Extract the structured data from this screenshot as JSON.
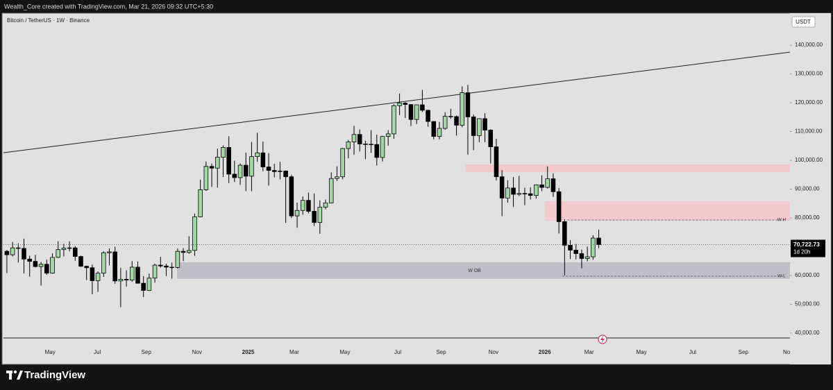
{
  "header": {
    "credit": "Wealth_Core created with TradingView.com, Mar 21, 2026 09:32 UTC+5:30"
  },
  "chart_data": {
    "type": "candlestick",
    "title": "Bitcoin / TetherUS · 1W · Binance",
    "currency": "USDT",
    "up_color": "#a5d6a7",
    "down_color": "#000000",
    "ohlc": [
      [
        68400,
        68900,
        60800,
        67200
      ],
      [
        67200,
        71700,
        66600,
        69600
      ],
      [
        69600,
        71200,
        64500,
        69400
      ],
      [
        69400,
        72800,
        60700,
        65700
      ],
      [
        65700,
        66900,
        59600,
        64900
      ],
      [
        64900,
        67200,
        62800,
        63100
      ],
      [
        63100,
        64700,
        56500,
        63900
      ],
      [
        63900,
        65500,
        60200,
        60800
      ],
      [
        60800,
        67700,
        60600,
        66300
      ],
      [
        66300,
        71900,
        66100,
        69000
      ],
      [
        69000,
        71000,
        66600,
        69500
      ],
      [
        69500,
        71900,
        68400,
        69600
      ],
      [
        69600,
        70200,
        65100,
        66600
      ],
      [
        66600,
        66900,
        63000,
        63200
      ],
      [
        63200,
        63400,
        58400,
        62700
      ],
      [
        62700,
        63800,
        53500,
        58200
      ],
      [
        58200,
        61400,
        54300,
        60800
      ],
      [
        60800,
        68400,
        59500,
        67900
      ],
      [
        67900,
        69400,
        63500,
        68200
      ],
      [
        68200,
        70000,
        57100,
        58100
      ],
      [
        58100,
        62700,
        49000,
        58700
      ],
      [
        58700,
        61800,
        56100,
        58400
      ],
      [
        58400,
        65000,
        57800,
        62900
      ],
      [
        62900,
        64900,
        57200,
        57300
      ],
      [
        57300,
        59800,
        52500,
        54800
      ],
      [
        54800,
        60700,
        54600,
        59100
      ],
      [
        59100,
        64100,
        57500,
        63600
      ],
      [
        63600,
        66500,
        62700,
        63300
      ],
      [
        63300,
        64100,
        59800,
        62900
      ],
      [
        62900,
        64500,
        58900,
        62800
      ],
      [
        62800,
        69400,
        62400,
        68400
      ],
      [
        68400,
        69500,
        65000,
        68000
      ],
      [
        68000,
        73600,
        67500,
        68700
      ],
      [
        68700,
        81500,
        66800,
        80400
      ],
      [
        80400,
        93300,
        80200,
        89800
      ],
      [
        89800,
        99600,
        89400,
        97900
      ],
      [
        97900,
        98900,
        90800,
        97300
      ],
      [
        97300,
        104100,
        90500,
        101100
      ],
      [
        101100,
        105200,
        94200,
        104500
      ],
      [
        104500,
        108400,
        92100,
        95200
      ],
      [
        95200,
        99900,
        92500,
        94000
      ],
      [
        94000,
        98900,
        91500,
        98300
      ],
      [
        98300,
        102700,
        89300,
        94500
      ],
      [
        94500,
        106400,
        89300,
        101300
      ],
      [
        101300,
        109600,
        99500,
        102600
      ],
      [
        102600,
        106500,
        96200,
        97700
      ],
      [
        97700,
        102500,
        91200,
        96500
      ],
      [
        96500,
        98800,
        94100,
        96100
      ],
      [
        96100,
        99500,
        93400,
        96300
      ],
      [
        96300,
        96500,
        78300,
        94300
      ],
      [
        94300,
        95000,
        80000,
        80700
      ],
      [
        80700,
        85300,
        76600,
        82600
      ],
      [
        82600,
        87500,
        81100,
        86100
      ],
      [
        86100,
        88800,
        81600,
        82300
      ],
      [
        82300,
        88500,
        77200,
        78400
      ],
      [
        78400,
        86100,
        74500,
        83700
      ],
      [
        83700,
        86400,
        83000,
        85200
      ],
      [
        85200,
        95800,
        85100,
        93700
      ],
      [
        93700,
        97900,
        92800,
        94300
      ],
      [
        94300,
        104300,
        93400,
        104100
      ],
      [
        104100,
        107100,
        100700,
        106400
      ],
      [
        106400,
        112000,
        102000,
        109000
      ],
      [
        109000,
        110700,
        103100,
        105700
      ],
      [
        105700,
        106800,
        100400,
        105600
      ],
      [
        105600,
        110500,
        102600,
        105500
      ],
      [
        105500,
        108900,
        98200,
        101000
      ],
      [
        101000,
        108500,
        99600,
        108300
      ],
      [
        108300,
        110500,
        105100,
        109200
      ],
      [
        109200,
        119500,
        107500,
        119000
      ],
      [
        119000,
        123200,
        115700,
        119900
      ],
      [
        119900,
        120200,
        114700,
        119400
      ],
      [
        119400,
        119500,
        111900,
        114200
      ],
      [
        114200,
        119400,
        112600,
        119300
      ],
      [
        119300,
        124500,
        116800,
        117400
      ],
      [
        117400,
        117600,
        111700,
        113500
      ],
      [
        113500,
        113600,
        107300,
        108300
      ],
      [
        108300,
        113400,
        107300,
        111100
      ],
      [
        111100,
        116700,
        110600,
        115300
      ],
      [
        115300,
        117900,
        114400,
        115200
      ],
      [
        115200,
        115600,
        108600,
        112200
      ],
      [
        112200,
        125700,
        111500,
        123500
      ],
      [
        123500,
        126200,
        102000,
        115100
      ],
      [
        115100,
        115900,
        103500,
        108600
      ],
      [
        108600,
        114600,
        106300,
        114500
      ],
      [
        114500,
        116400,
        106300,
        110500
      ],
      [
        110500,
        110800,
        98900,
        104700
      ],
      [
        104700,
        107500,
        93000,
        94300
      ],
      [
        94300,
        96600,
        80600,
        86900
      ],
      [
        86900,
        93100,
        85300,
        90400
      ],
      [
        90400,
        94200,
        83800,
        88200
      ],
      [
        88200,
        94600,
        87600,
        88500
      ],
      [
        88500,
        90500,
        84400,
        88400
      ],
      [
        88400,
        90600,
        86400,
        87800
      ],
      [
        87800,
        91600,
        86700,
        91500
      ],
      [
        91500,
        94800,
        89300,
        90600
      ],
      [
        90600,
        97900,
        90200,
        93600
      ],
      [
        93600,
        95500,
        87300,
        89100
      ],
      [
        89100,
        90400,
        74600,
        78700
      ],
      [
        78700,
        79500,
        60000,
        70500
      ],
      [
        70500,
        72300,
        65700,
        68800
      ],
      [
        68800,
        70900,
        65600,
        67600
      ],
      [
        67600,
        69000,
        62500,
        65900
      ],
      [
        65900,
        70000,
        64900,
        66500
      ],
      [
        66500,
        74000,
        65500,
        73000
      ],
      [
        73000,
        75900,
        69500,
        70722.73
      ]
    ],
    "last_price_label": "70,722.73",
    "countdown": "1d 20h",
    "xlim": [
      -0.6,
      137.6
    ],
    "xticks": [
      {
        "value": 7.6,
        "label": "May"
      },
      {
        "value": 15.9,
        "label": "Jul"
      },
      {
        "value": 24.5,
        "label": "Sep"
      },
      {
        "value": 33.4,
        "label": "Nov"
      },
      {
        "value": 42.4,
        "label": "2025"
      },
      {
        "value": 50.5,
        "label": "Mar"
      },
      {
        "value": 59.4,
        "label": "May"
      },
      {
        "value": 68.7,
        "label": "Jul"
      },
      {
        "value": 76.3,
        "label": "Sep"
      },
      {
        "value": 85.5,
        "label": "Nov"
      },
      {
        "value": 94.5,
        "label": "2026"
      },
      {
        "value": 102.3,
        "label": "Mar"
      },
      {
        "value": 111.5,
        "label": "May"
      },
      {
        "value": 120.5,
        "label": "Jul"
      },
      {
        "value": 129.4,
        "label": "Sep"
      },
      {
        "value": 137.0,
        "label": "No"
      }
    ],
    "ylim": [
      38300,
      150400
    ],
    "yticks": [
      {
        "value": 40000,
        "label": "40,000.00"
      },
      {
        "value": 50000,
        "label": "50,000.00"
      },
      {
        "value": 60000,
        "label": "60,000.00"
      },
      {
        "value": 70000,
        "label": "70,000.00"
      },
      {
        "value": 80000,
        "label": "80,000.00"
      },
      {
        "value": 90000,
        "label": "90,000.00"
      },
      {
        "value": 100000,
        "label": "100,000.00"
      },
      {
        "value": 110000,
        "label": "110,000.00"
      },
      {
        "value": 120000,
        "label": "120,000.00"
      },
      {
        "value": 130000,
        "label": "130,000.00"
      },
      {
        "value": 140000,
        "label": "140,000.00"
      }
    ],
    "trendline": {
      "x": [
        -0.6,
        137.6
      ],
      "y": [
        102650,
        137590
      ]
    },
    "zones": [
      {
        "x": [
          80.6,
          137.6
        ],
        "y": [
          95900,
          98550
        ],
        "color": "#f2c9cc"
      },
      {
        "x": [
          94.5,
          137.6
        ],
        "y": [
          79040,
          85780
        ],
        "color": "#f2c9cc"
      },
      {
        "x": [
          29.9,
          137.6
        ],
        "y": [
          58800,
          64580
        ],
        "color": "#bfbfc5",
        "label": "W OB"
      }
    ],
    "levels": [
      {
        "x": [
          98.5,
          137.6
        ],
        "y": 79280,
        "label": "W H"
      },
      {
        "x": [
          97.6,
          137.6
        ],
        "y": 59760,
        "label": "W L"
      }
    ]
  },
  "footer": {
    "brand": "TradingView"
  }
}
